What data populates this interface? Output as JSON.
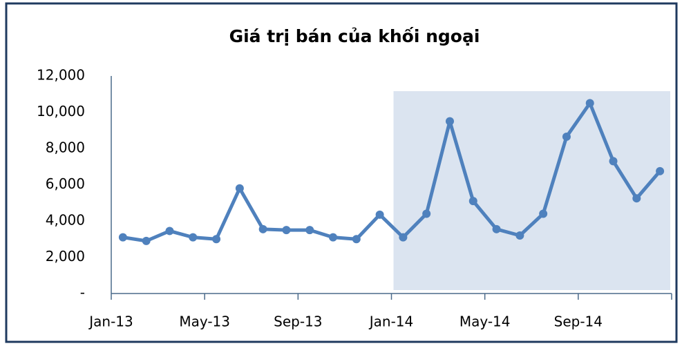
{
  "chart_data": {
    "type": "line",
    "title": "Giá trị bán của khối ngoại",
    "categories": [
      "Jan-13",
      null,
      null,
      null,
      "May-13",
      null,
      null,
      null,
      "Sep-13",
      null,
      null,
      null,
      "Jan-14",
      null,
      null,
      null,
      "May-14",
      null,
      null,
      null,
      "Sep-14",
      null,
      null,
      null
    ],
    "series": [
      {
        "name": "Giá trị bán",
        "color": "#4f81bd",
        "values": [
          3100,
          2900,
          3450,
          3100,
          3000,
          5800,
          3550,
          3500,
          3500,
          3100,
          3000,
          4350,
          3100,
          4400,
          9500,
          5100,
          3550,
          3200,
          4400,
          8650,
          10500,
          7300,
          5250,
          6750
        ]
      }
    ],
    "ylim": [
      0,
      12000
    ],
    "yticks": [
      {
        "value": 0,
        "label": "-"
      },
      {
        "value": 2000,
        "label": "2,000"
      },
      {
        "value": 4000,
        "label": "4,000"
      },
      {
        "value": 6000,
        "label": "6,000"
      },
      {
        "value": 8000,
        "label": "8,000"
      },
      {
        "value": 10000,
        "label": "10,000"
      },
      {
        "value": 12000,
        "label": "12,000"
      }
    ],
    "grid": false,
    "highlight": {
      "start": 12,
      "end": 23,
      "color": "#dbe4f0"
    }
  }
}
